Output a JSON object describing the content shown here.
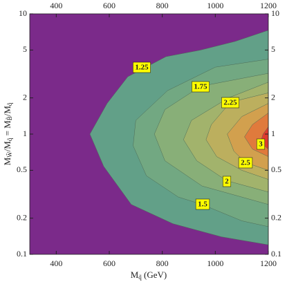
{
  "chart_data": {
    "type": "contour",
    "x_label": [
      "M",
      "q̃",
      " (GeV)"
    ],
    "y_label": [
      "M",
      "W̃",
      "/M",
      "q̃",
      " = M",
      "B̃",
      "/M",
      "q̃"
    ],
    "xlim": [
      300,
      1200
    ],
    "xticks": [
      400,
      600,
      800,
      1000,
      1200
    ],
    "ylim": [
      0.1,
      10
    ],
    "yticks": [
      0.1,
      0.2,
      0.5,
      1,
      2,
      5,
      10
    ],
    "y_log": true,
    "background_color": "#7b2a8a",
    "levels": [
      {
        "level": 1.25,
        "color": "#62a088",
        "x": [
          1200,
          1075,
          945,
          814,
          670,
          592,
          527,
          579,
          683,
          840,
          1023,
          1200
        ],
        "y": [
          7.3,
          5.9,
          5.0,
          4.4,
          3.0,
          1.8,
          1.0,
          0.54,
          0.26,
          0.18,
          0.14,
          0.12
        ]
      },
      {
        "level": 1.5,
        "color": "#72a882",
        "x": [
          1200,
          1000,
          820,
          700,
          690,
          740,
          860,
          950,
          1100,
          1200
        ],
        "y": [
          4.2,
          3.6,
          2.3,
          1.3,
          0.8,
          0.45,
          0.3,
          0.26,
          0.19,
          0.17
        ]
      },
      {
        "level": 1.75,
        "color": "#88af78",
        "x": [
          1200,
          945,
          810,
          770,
          810,
          950,
          1200
        ],
        "y": [
          3.2,
          2.5,
          1.6,
          1.0,
          0.6,
          0.37,
          0.26
        ]
      },
      {
        "level": 2,
        "color": "#a2b36c",
        "x": [
          1200,
          1050,
          910,
          880,
          930,
          1043,
          1200
        ],
        "y": [
          2.7,
          2.0,
          1.3,
          0.9,
          0.6,
          0.41,
          0.33
        ]
      },
      {
        "level": 2.25,
        "color": "#bcaf5e",
        "x": [
          1200,
          1057,
          985,
          965,
          1005,
          1100,
          1200
        ],
        "y": [
          2.2,
          1.84,
          1.2,
          0.9,
          0.65,
          0.5,
          0.42
        ]
      },
      {
        "level": 2.5,
        "color": "#d2a04e",
        "x": [
          1200,
          1100,
          1045,
          1070,
          1114,
          1200
        ],
        "y": [
          1.8,
          1.4,
          1.0,
          0.72,
          0.58,
          0.5
        ]
      },
      {
        "level": 2.75,
        "color": "#e07a3c",
        "x": [
          1200,
          1140,
          1110,
          1140,
          1200
        ],
        "y": [
          1.5,
          1.2,
          0.95,
          0.75,
          0.65
        ]
      },
      {
        "level": 3,
        "color": "#de3a2e",
        "x": [
          1200,
          1180,
          1170,
          1200
        ],
        "y": [
          1.15,
          1.0,
          0.85,
          0.75
        ]
      }
    ],
    "contour_labels": [
      1.25,
      1.5,
      1.75,
      2,
      2.25,
      2.5,
      3
    ]
  }
}
